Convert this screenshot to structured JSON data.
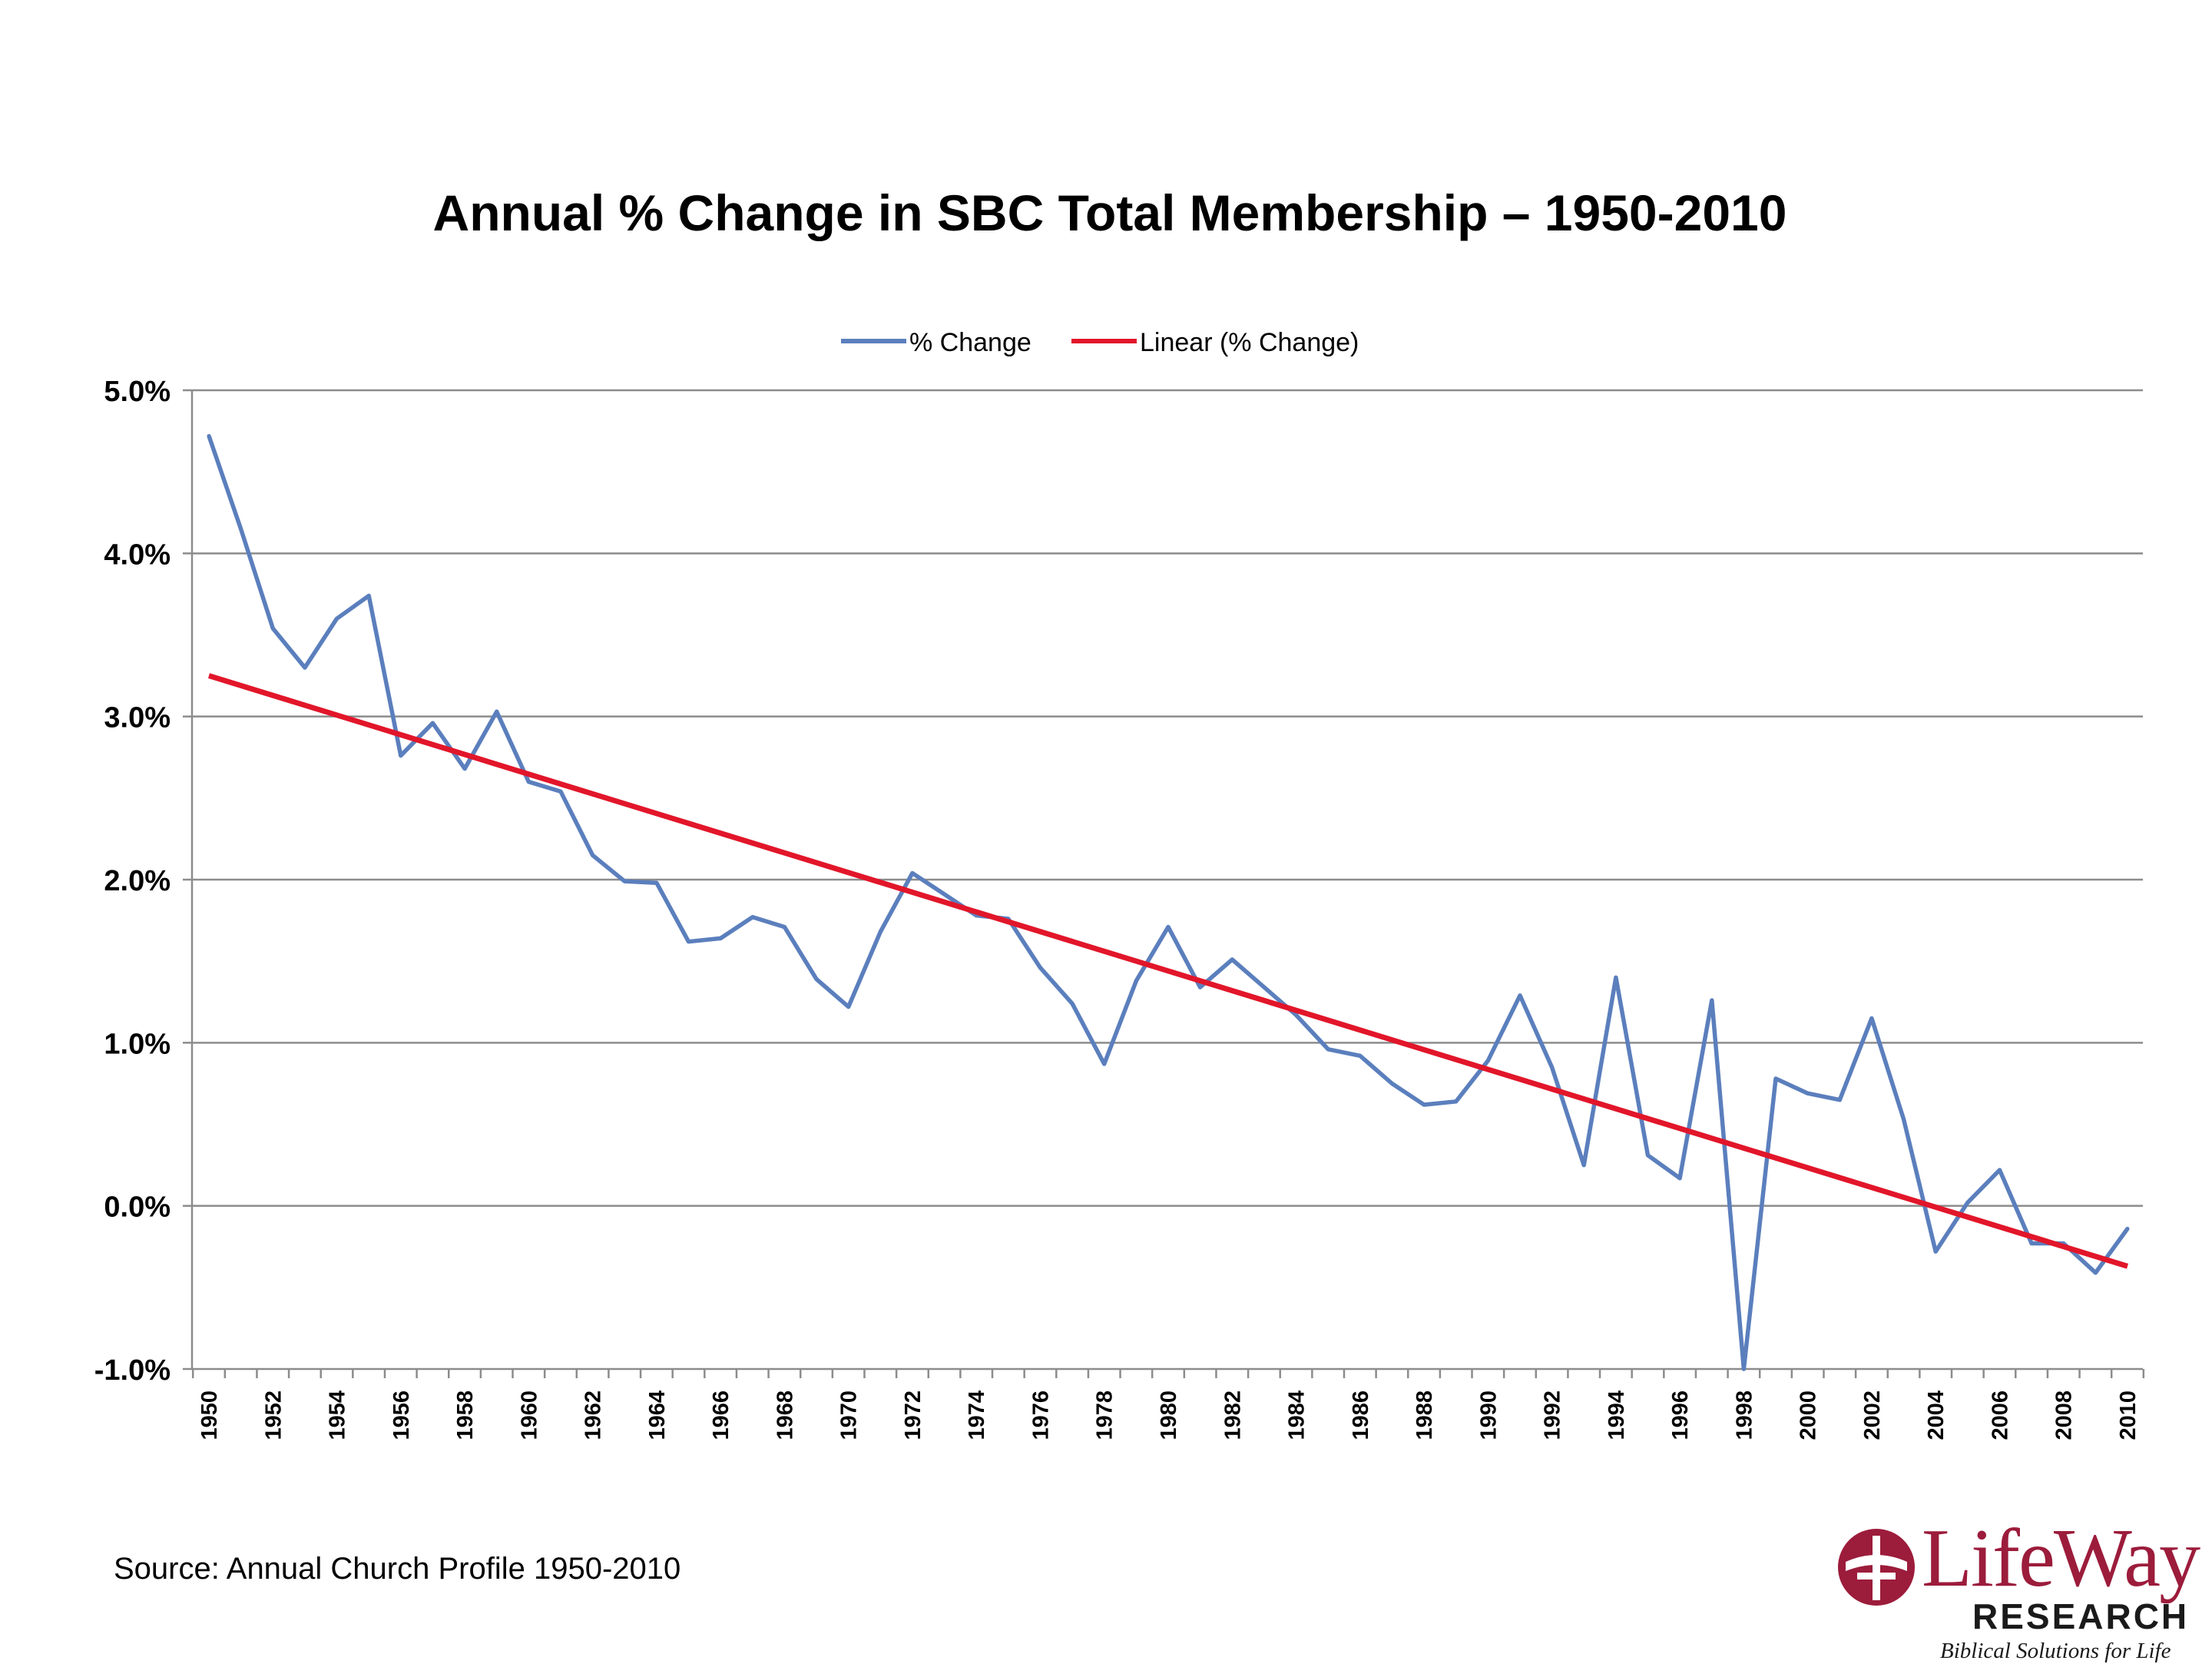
{
  "chart_data": {
    "type": "line",
    "title": "Annual % Change in SBC Total Membership – 1950-2010",
    "ylim": [
      -1.0,
      5.0
    ],
    "yticks": [
      "5.0%",
      "4.0%",
      "3.0%",
      "2.0%",
      "1.0%",
      "0.0%",
      "-1.0%"
    ],
    "ytick_values": [
      5,
      4,
      3,
      2,
      1,
      0,
      -1
    ],
    "grid": true,
    "legend_position": "top-center",
    "x": [
      1950,
      1951,
      1952,
      1953,
      1954,
      1955,
      1956,
      1957,
      1958,
      1959,
      1960,
      1961,
      1962,
      1963,
      1964,
      1965,
      1966,
      1967,
      1968,
      1969,
      1970,
      1971,
      1972,
      1973,
      1974,
      1975,
      1976,
      1977,
      1978,
      1979,
      1980,
      1981,
      1982,
      1983,
      1984,
      1985,
      1986,
      1987,
      1988,
      1989,
      1990,
      1991,
      1992,
      1993,
      1994,
      1995,
      1996,
      1997,
      1998,
      1999,
      2000,
      2001,
      2002,
      2003,
      2004,
      2005,
      2006,
      2007,
      2008,
      2009,
      2010
    ],
    "xtick_labels": [
      "1950",
      "1952",
      "1954",
      "1956",
      "1958",
      "1960",
      "1962",
      "1964",
      "1966",
      "1968",
      "1970",
      "1972",
      "1974",
      "1976",
      "1978",
      "1980",
      "1982",
      "1984",
      "1986",
      "1988",
      "1990",
      "1992",
      "1994",
      "1996",
      "1998",
      "2000",
      "2002",
      "2004",
      "2006",
      "2008",
      "2010"
    ],
    "series": [
      {
        "name": "% Change",
        "color": "#5b7fbd",
        "values": [
          4.72,
          4.15,
          3.54,
          3.3,
          3.6,
          3.74,
          2.76,
          2.96,
          2.68,
          3.03,
          2.6,
          2.54,
          2.15,
          1.99,
          1.98,
          1.62,
          1.64,
          1.77,
          1.71,
          1.39,
          1.22,
          1.68,
          2.04,
          1.91,
          1.78,
          1.76,
          1.46,
          1.24,
          0.87,
          1.38,
          1.71,
          1.34,
          1.51,
          1.34,
          1.17,
          0.96,
          0.92,
          0.75,
          0.62,
          0.64,
          0.89,
          1.29,
          0.85,
          0.25,
          1.4,
          0.31,
          0.17,
          1.26,
          -1.0,
          0.78,
          0.69,
          0.65,
          1.15,
          0.53,
          -0.28,
          0.02,
          0.22,
          -0.23,
          -0.23,
          -0.41,
          -0.14
        ]
      },
      {
        "name": "Linear (% Change)",
        "color": "#e2162a",
        "trend": {
          "from": [
            1950,
            3.25
          ],
          "to": [
            2010,
            -0.37
          ]
        }
      }
    ]
  },
  "footer": {
    "source": "Source: Annual Church Profile 1950-2010"
  },
  "logo": {
    "word": "LifeWay",
    "research": "RESEARCH",
    "tagline": "Biblical Solutions for Life",
    "color": "#9c1c3b"
  }
}
